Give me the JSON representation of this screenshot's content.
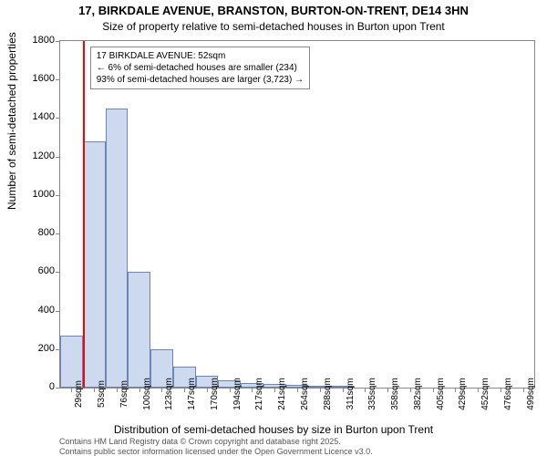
{
  "title": "17, BIRKDALE AVENUE, BRANSTON, BURTON-ON-TRENT, DE14 3HN",
  "subtitle": "Size of property relative to semi-detached houses in Burton upon Trent",
  "ylabel": "Number of semi-detached properties",
  "xlabel": "Distribution of semi-detached houses by size in Burton upon Trent",
  "attribution1": "Contains HM Land Registry data © Crown copyright and database right 2025.",
  "attribution2": "Contains public sector information licensed under the Open Government Licence v3.0.",
  "chart": {
    "type": "histogram",
    "ylim": [
      0,
      1800
    ],
    "ytick_step": 200,
    "bar_fill": "#cdd9ee",
    "bar_stroke": "#6a85b6",
    "background": "#ffffff",
    "border_color": "#888888",
    "marker_color": "#ff0000",
    "marker_x_value": 52,
    "x_categories": [
      "29sqm",
      "53sqm",
      "76sqm",
      "100sqm",
      "123sqm",
      "147sqm",
      "170sqm",
      "194sqm",
      "217sqm",
      "241sqm",
      "264sqm",
      "288sqm",
      "311sqm",
      "335sqm",
      "358sqm",
      "382sqm",
      "405sqm",
      "429sqm",
      "452sqm",
      "476sqm",
      "499sqm"
    ],
    "values": [
      270,
      1280,
      1450,
      600,
      200,
      110,
      60,
      40,
      25,
      18,
      12,
      10,
      5,
      3,
      2,
      2,
      1,
      1,
      1,
      1,
      0
    ],
    "annotation": {
      "line1": "17 BIRKDALE AVENUE: 52sqm",
      "line2": "← 6% of semi-detached houses are smaller (234)",
      "line3": "93% of semi-detached houses are larger (3,723) →"
    }
  }
}
